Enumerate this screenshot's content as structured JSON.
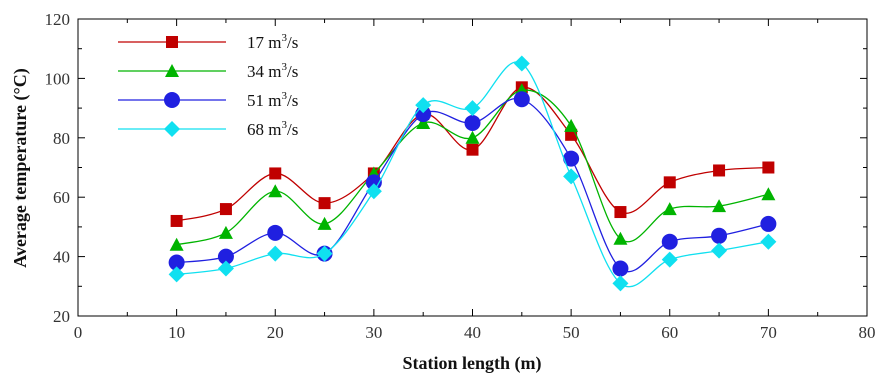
{
  "chart_data": {
    "type": "line",
    "xlabel": "Station length (m)",
    "ylabel": "Average temperature (°C)",
    "xlim": [
      0,
      80
    ],
    "ylim": [
      20,
      120
    ],
    "xticks": [
      0,
      10,
      20,
      30,
      40,
      50,
      60,
      70,
      80
    ],
    "yticks": [
      20,
      40,
      60,
      80,
      100,
      120
    ],
    "legend_position": "top-left",
    "grid": false,
    "x": [
      10,
      15,
      20,
      25,
      30,
      35,
      40,
      45,
      50,
      55,
      60,
      65,
      70
    ],
    "series": [
      {
        "name_prefix": "17 m",
        "name_sup": "3",
        "name_suffix": "/s",
        "color": "#c00000",
        "marker": "square",
        "values": [
          52,
          56,
          68,
          58,
          68,
          88,
          76,
          97,
          81,
          55,
          65,
          69,
          70
        ]
      },
      {
        "name_prefix": "34 m",
        "name_sup": "3",
        "name_suffix": "/s",
        "color": "#00b400",
        "marker": "triangle",
        "values": [
          44,
          48,
          62,
          51,
          68,
          85,
          80,
          96,
          84,
          46,
          56,
          57,
          61
        ]
      },
      {
        "name_prefix": "51 m",
        "name_sup": "3",
        "name_suffix": "/s",
        "color": "#2020e0",
        "marker": "circle",
        "values": [
          38,
          40,
          48,
          41,
          65,
          88,
          85,
          93,
          73,
          36,
          45,
          47,
          51
        ]
      },
      {
        "name_prefix": "68 m",
        "name_sup": "3",
        "name_suffix": "/s",
        "color": "#10e0f0",
        "marker": "diamond",
        "values": [
          34,
          36,
          41,
          41,
          62,
          91,
          90,
          105,
          67,
          31,
          39,
          42,
          45
        ]
      }
    ]
  }
}
